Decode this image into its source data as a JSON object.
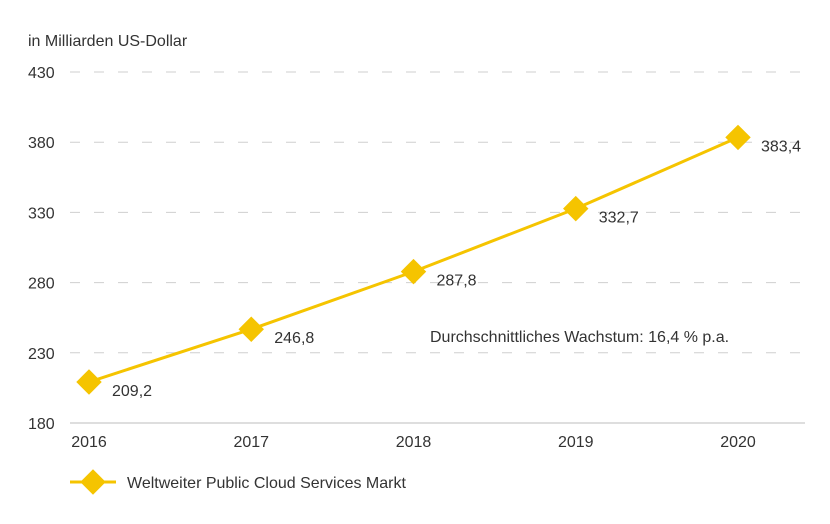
{
  "chart_data": {
    "type": "line",
    "ylabel": "in Milliarden US-Dollar",
    "categories": [
      "2016",
      "2017",
      "2018",
      "2019",
      "2020"
    ],
    "series": [
      {
        "name": "Weltweiter Public Cloud Services Markt",
        "values": [
          209.2,
          246.8,
          287.8,
          332.7,
          383.4
        ],
        "labels": [
          "209,2",
          "246,8",
          "287,8",
          "332,7",
          "383,4"
        ],
        "color": "#f5c400"
      }
    ],
    "ylim": [
      180,
      430
    ],
    "yticks": [
      180,
      230,
      280,
      330,
      380,
      430
    ],
    "grid": true,
    "legend": "bottom-left",
    "annotation": "Durchschnittliches Wachstum: 16,4 % p.a."
  }
}
